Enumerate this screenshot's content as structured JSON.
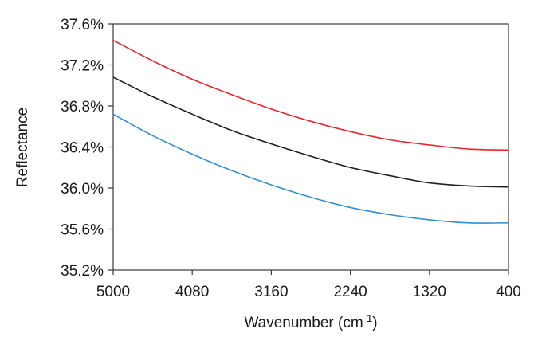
{
  "chart_data": {
    "type": "line",
    "title": "",
    "xlabel": "Wavenumber (cm",
    "xlabel_superscript": "-1",
    "xlabel_suffix": ")",
    "ylabel": "Reflectance",
    "xlim": [
      5000,
      400
    ],
    "ylim": [
      35.2,
      37.6
    ],
    "x_ticks": [
      "5000",
      "4080",
      "3160",
      "2240",
      "1320",
      "400"
    ],
    "y_ticks": [
      "35.2%",
      "35.6%",
      "36.0%",
      "36.4%",
      "36.8%",
      "37.2%",
      "37.6%"
    ],
    "x_tick_values": [
      5000,
      4080,
      3160,
      2240,
      1320,
      400
    ],
    "y_tick_values": [
      35.2,
      35.6,
      36.0,
      36.4,
      36.8,
      37.2,
      37.6
    ],
    "grid": false,
    "legend": "none",
    "x": [
      5000,
      4540,
      4080,
      3620,
      3160,
      2700,
      2240,
      1780,
      1320,
      860,
      400
    ],
    "series": [
      {
        "color": "#e8262d",
        "values": [
          37.44,
          37.24,
          37.06,
          36.91,
          36.77,
          36.65,
          36.55,
          36.47,
          36.42,
          36.38,
          36.37
        ]
      },
      {
        "color": "#1e1e1e",
        "values": [
          37.08,
          36.89,
          36.72,
          36.56,
          36.43,
          36.31,
          36.2,
          36.12,
          36.05,
          36.02,
          36.01
        ]
      },
      {
        "color": "#2f8fd0",
        "values": [
          36.72,
          36.51,
          36.33,
          36.17,
          36.03,
          35.91,
          35.81,
          35.74,
          35.69,
          35.66,
          35.66
        ]
      }
    ]
  }
}
